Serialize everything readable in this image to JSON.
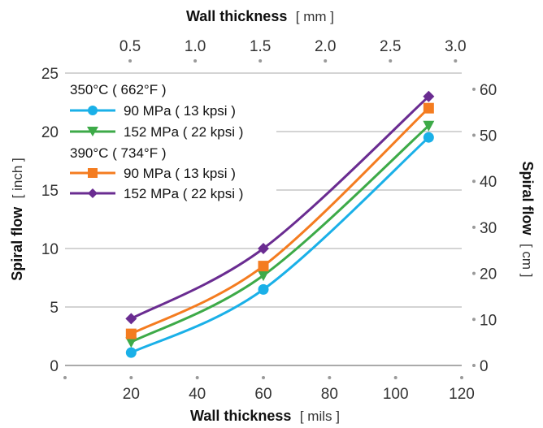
{
  "chart_data": {
    "type": "line",
    "x_bottom": {
      "label": "Wall thickness",
      "unit": "[ mils ]",
      "range": [
        0,
        120
      ],
      "ticks": [
        "20",
        "40",
        "60",
        "80",
        "100",
        "120"
      ]
    },
    "x_top": {
      "label": "Wall thickness",
      "unit": "[ mm ]",
      "ticks": [
        "0.5",
        "1.0",
        "1.5",
        "2.0",
        "2.5",
        "3.0"
      ]
    },
    "y_left": {
      "label": "Spiral flow",
      "unit": "[ inch ]",
      "range": [
        0,
        25
      ],
      "ticks": [
        "0",
        "5",
        "10",
        "15",
        "20",
        "25"
      ]
    },
    "y_right": {
      "label": "Spiral flow",
      "unit": "[ cm ]",
      "ticks": [
        "0",
        "10",
        "20",
        "30",
        "40",
        "50",
        "60"
      ]
    },
    "legend_groups": [
      "350°C ( 662°F )",
      "390°C ( 734°F )"
    ],
    "series": [
      {
        "name": "90 MPa ( 13 kpsi )",
        "group": 0,
        "color": "#1ab0e8",
        "marker": "circle",
        "x": [
          20,
          60,
          110
        ],
        "y": [
          1.1,
          6.5,
          19.5
        ]
      },
      {
        "name": "152 MPa ( 22 kpsi )",
        "group": 0,
        "color": "#3daa48",
        "marker": "triangle-down",
        "x": [
          20,
          60,
          110
        ],
        "y": [
          2.0,
          7.7,
          20.5
        ]
      },
      {
        "name": "90 MPa ( 13 kpsi )",
        "group": 1,
        "color": "#f47c20",
        "marker": "square",
        "x": [
          20,
          60,
          110
        ],
        "y": [
          2.7,
          8.5,
          22.0
        ]
      },
      {
        "name": "152 MPa ( 22 kpsi )",
        "group": 1,
        "color": "#6a2c91",
        "marker": "diamond",
        "x": [
          20,
          60,
          110
        ],
        "y": [
          4.0,
          10.0,
          23.0
        ]
      }
    ],
    "grid": "horizontal",
    "legend_position": "top-left"
  }
}
